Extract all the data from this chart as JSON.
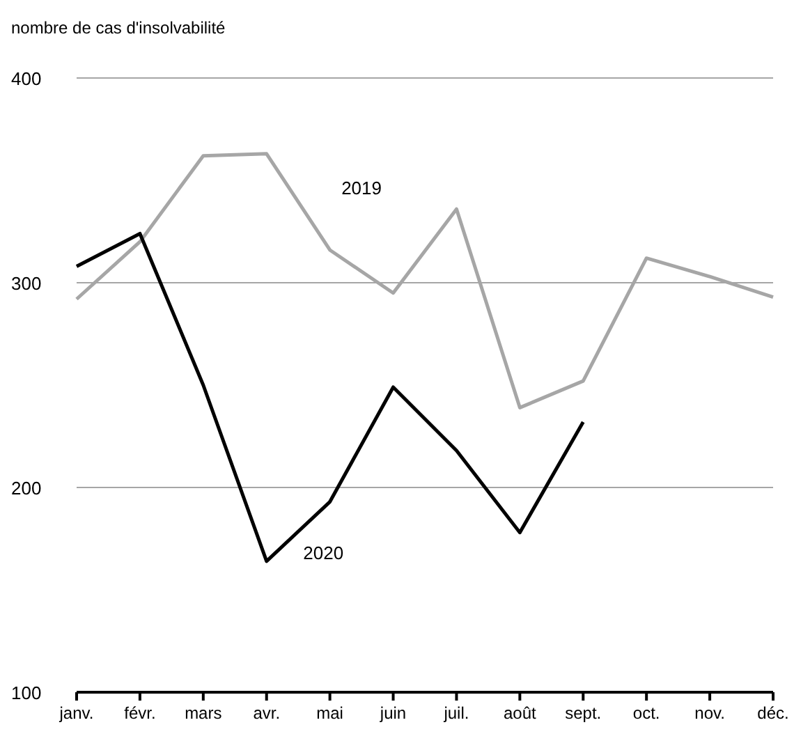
{
  "chart_data": {
    "type": "line",
    "ylabel": "nombre de cas d'insolvabilité",
    "categories": [
      "janv.",
      "févr.",
      "mars",
      "avr.",
      "mai",
      "juin",
      "juil.",
      "août",
      "sept.",
      "oct.",
      "nov.",
      "déc."
    ],
    "series": [
      {
        "name": "2019",
        "color": "#a6a6a6",
        "values": [
          292,
          320,
          362,
          363,
          316,
          295,
          336,
          239,
          252,
          312,
          303,
          293
        ]
      },
      {
        "name": "2020",
        "color": "#000000",
        "values": [
          308,
          324,
          250,
          164,
          193,
          249,
          218,
          178,
          232,
          null,
          null,
          null
        ]
      }
    ],
    "ylim": [
      100,
      400
    ],
    "yticks": [
      100,
      200,
      300,
      400
    ],
    "grid": "y",
    "marker": "none",
    "line_style": "solid"
  }
}
